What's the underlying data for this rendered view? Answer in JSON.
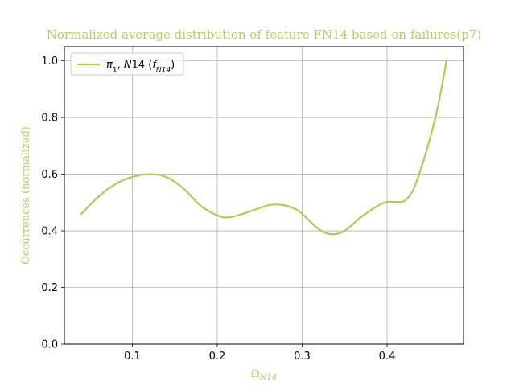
{
  "chart_data": {
    "type": "line",
    "title": "Normalized average distribution of feature FN14 based on failures(p7)",
    "xlabel_main": "Ω",
    "xlabel_sub": "N14",
    "ylabel": "Occurrences (normalized)",
    "xlim": [
      0.02,
      0.49
    ],
    "ylim": [
      0.0,
      1.05
    ],
    "xticks": [
      {
        "value": 0.1,
        "label": "0.1"
      },
      {
        "value": 0.2,
        "label": "0.2"
      },
      {
        "value": 0.3,
        "label": "0.3"
      },
      {
        "value": 0.4,
        "label": "0.4"
      }
    ],
    "yticks": [
      {
        "value": 0.0,
        "label": "0.0"
      },
      {
        "value": 0.2,
        "label": "0.2"
      },
      {
        "value": 0.4,
        "label": "0.4"
      },
      {
        "value": 0.6,
        "label": "0.6"
      },
      {
        "value": 0.8,
        "label": "0.8"
      },
      {
        "value": 1.0,
        "label": "1.0"
      }
    ],
    "grid": true,
    "legend_position": "top-left",
    "text_color": "#b1d15a",
    "series": [
      {
        "name_parts": [
          {
            "t": "π",
            "style": "italic"
          },
          {
            "t": "1",
            "style": "sub"
          },
          {
            "t": ", ",
            "style": "normal"
          },
          {
            "t": "N",
            "style": "italic"
          },
          {
            "t": "14 (",
            "style": "normal"
          },
          {
            "t": "f",
            "style": "italic"
          },
          {
            "t": "N14",
            "style": "sub-italic"
          },
          {
            "t": ")",
            "style": "normal"
          }
        ],
        "color": "#a8cf54",
        "x": [
          0.04,
          0.06,
          0.08,
          0.1,
          0.12,
          0.14,
          0.16,
          0.18,
          0.2,
          0.215,
          0.24,
          0.26,
          0.275,
          0.29,
          0.3,
          0.32,
          0.335,
          0.35,
          0.37,
          0.39,
          0.4,
          0.41,
          0.42,
          0.43,
          0.44,
          0.45,
          0.46,
          0.47
        ],
        "values": [
          0.46,
          0.52,
          0.565,
          0.59,
          0.6,
          0.59,
          0.55,
          0.49,
          0.455,
          0.448,
          0.47,
          0.49,
          0.492,
          0.48,
          0.46,
          0.405,
          0.388,
          0.4,
          0.45,
          0.49,
          0.502,
          0.502,
          0.505,
          0.54,
          0.62,
          0.72,
          0.84,
          1.0
        ]
      }
    ]
  }
}
